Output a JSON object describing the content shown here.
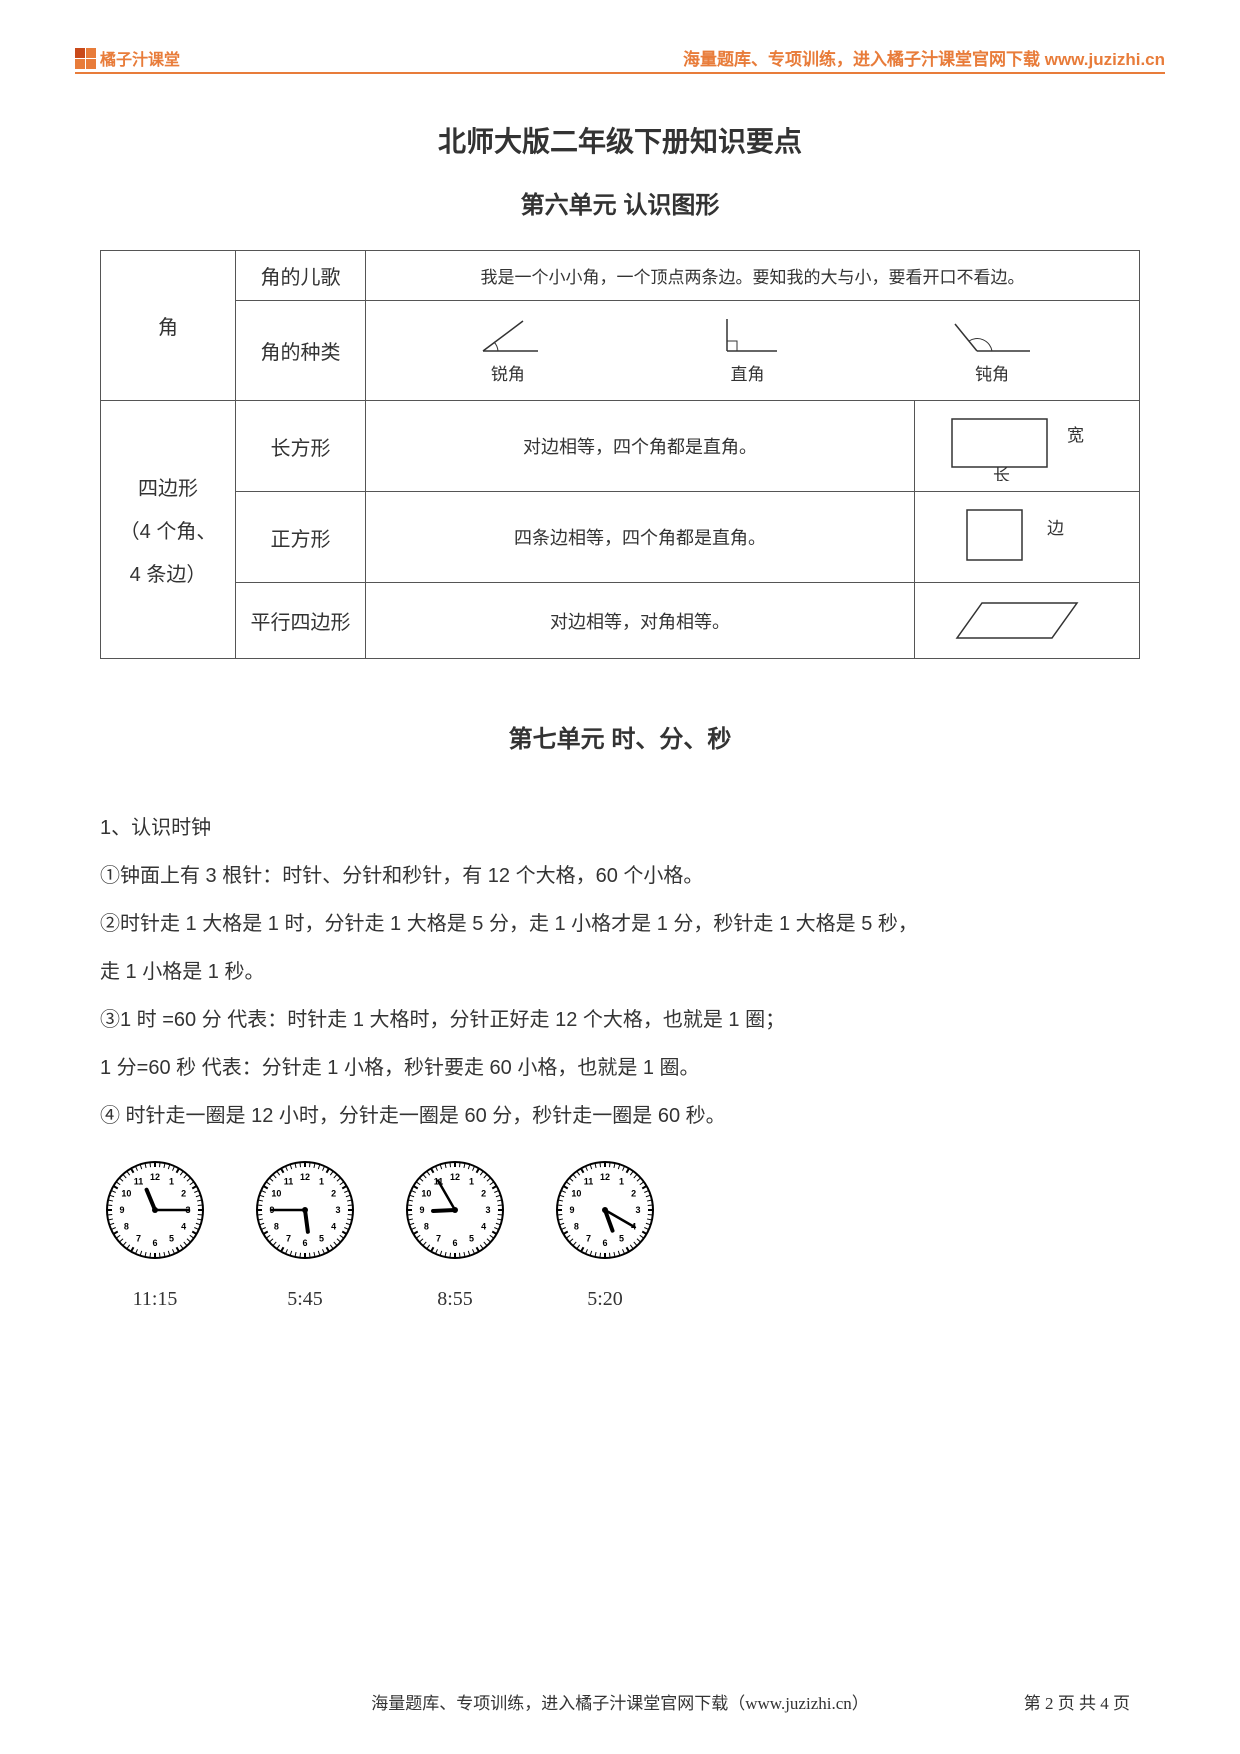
{
  "header": {
    "logo_text": "橘子汁课堂",
    "right_text": "海量题库、专项训练，进入橘子汁课堂官网下载 www.juzizhi.cn",
    "brand_color": "#e87c3a"
  },
  "titles": {
    "main": "北师大版二年级下册知识要点",
    "unit6": "第六单元 认识图形",
    "unit7": "第七单元 时、分、秒"
  },
  "table": {
    "row_angle_header": "角",
    "angle_song_label": "角的儿歌",
    "angle_song_text": "我是一个小小角，一个顶点两条边。要知我的大与小，要看开口不看边。",
    "angle_types_label": "角的种类",
    "angle_types": {
      "acute": "锐角",
      "right": "直角",
      "obtuse": "钝角"
    },
    "quad_header_l1": "四边形",
    "quad_header_l2": "（4 个角、",
    "quad_header_l3": "4 条边）",
    "rect_label": "长方形",
    "rect_desc": "对边相等，四个角都是直角。",
    "rect_width": "宽",
    "rect_length": "长",
    "square_label": "正方形",
    "square_desc": "四条边相等，四个角都是直角。",
    "square_side": "边",
    "para_label": "平行四边形",
    "para_desc": "对边相等，对角相等。"
  },
  "body": {
    "h1": "1、认识时钟",
    "p1": "①钟面上有 3 根针：时针、分针和秒针，有 12 个大格，60 个小格。",
    "p2": "②时针走 1 大格是 1 时，分针走 1 大格是 5 分，走 1 小格才是 1 分，秒针走 1 大格是 5 秒，",
    "p2b": "走 1 小格是 1 秒。",
    "p3": "③1 时 =60 分   代表：时针走 1 大格时，分针正好走 12 个大格，也就是 1 圈；",
    "p4": "1 分=60 秒   代表：分针走 1 小格，秒针要走 60 小格，也就是 1 圈。",
    "p5": "④ 时针走一圈是 12 小时，分针走一圈是 60 分，秒针走一圈是 60 秒。"
  },
  "clocks": [
    {
      "label": "11:15",
      "hour": 11,
      "minute": 15
    },
    {
      "label": "5:45",
      "hour": 5,
      "minute": 45
    },
    {
      "label": "8:55",
      "hour": 8,
      "minute": 55
    },
    {
      "label": "5:20",
      "hour": 5,
      "minute": 20
    }
  ],
  "footer": {
    "text": "海量题库、专项训练，进入橘子汁课堂官网下载（www.juzizhi.cn）",
    "page": "第 2 页 共 4 页"
  }
}
